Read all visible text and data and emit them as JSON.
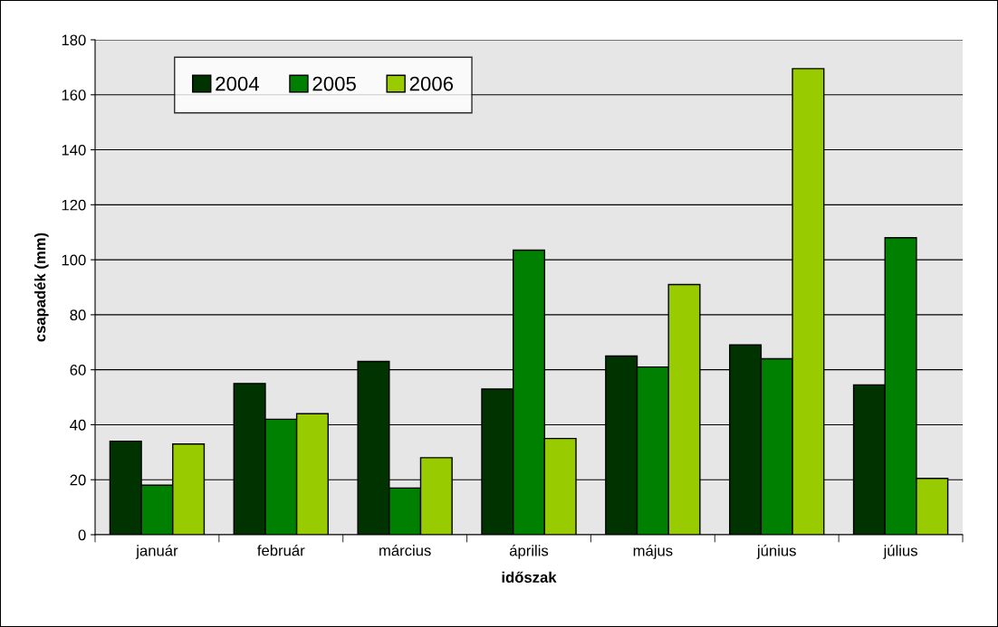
{
  "chart_data": {
    "type": "bar",
    "xlabel": "időszak",
    "ylabel": "csapadék (mm)",
    "categories": [
      "január",
      "február",
      "március",
      "április",
      "május",
      "június",
      "július"
    ],
    "series": [
      {
        "name": "2004",
        "color": "#003300",
        "values": [
          34,
          55,
          63,
          53,
          65,
          69,
          54.5
        ]
      },
      {
        "name": "2005",
        "color": "#008000",
        "values": [
          18,
          42,
          17,
          103.5,
          61,
          64,
          108
        ]
      },
      {
        "name": "2006",
        "color": "#99cc00",
        "values": [
          33,
          44,
          28,
          35,
          91,
          169.5,
          20.5
        ]
      }
    ],
    "ylim": [
      0,
      180
    ],
    "yticks": [
      0,
      20,
      40,
      60,
      80,
      100,
      120,
      140,
      160,
      180
    ],
    "grid": "y",
    "legend": "top left"
  }
}
